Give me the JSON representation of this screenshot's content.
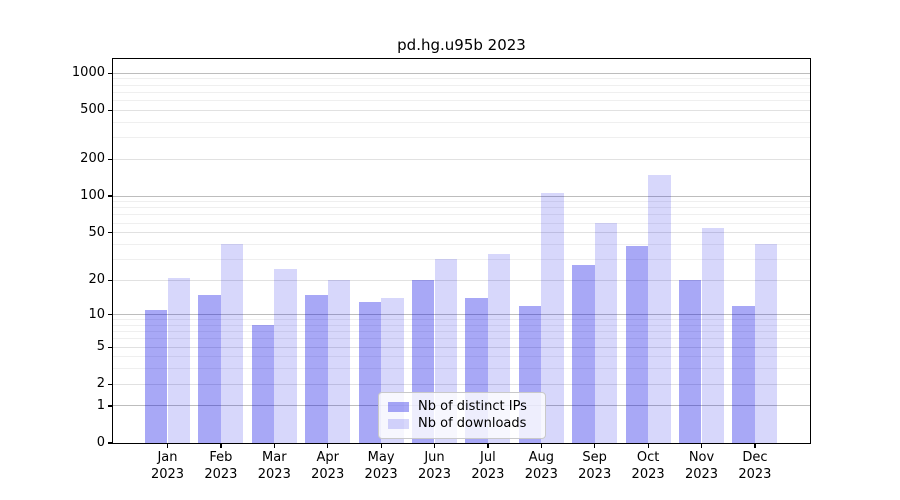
{
  "title": "pd.hg.u95b 2023",
  "chart_data": {
    "type": "bar",
    "title": "pd.hg.u95b 2023",
    "y_scale": "log10(value+1)",
    "grid": true,
    "legend_position": "inside-bottom-center",
    "categories": [
      "Jan",
      "Feb",
      "Mar",
      "Apr",
      "May",
      "Jun",
      "Jul",
      "Aug",
      "Sep",
      "Oct",
      "Nov",
      "Dec"
    ],
    "category_year": "2023",
    "series": [
      {
        "name": "Nb of distinct IPs",
        "color": "#0000e6",
        "opacity": 0.34,
        "values": [
          11,
          15,
          8,
          15,
          13,
          20,
          14,
          12,
          27,
          39,
          20,
          12
        ]
      },
      {
        "name": "Nb of downloads",
        "color": "#0000e6",
        "opacity": 0.155,
        "values": [
          21,
          40,
          25,
          20,
          14,
          30,
          33,
          105,
          60,
          150,
          55,
          40
        ]
      }
    ],
    "y_ticks": [
      0,
      1,
      2,
      5,
      10,
      20,
      50,
      100,
      200,
      500,
      1000
    ],
    "y_minor_ticks": [
      3,
      4,
      6,
      7,
      8,
      9,
      30,
      40,
      60,
      70,
      80,
      90,
      300,
      400,
      600,
      700,
      800,
      900
    ],
    "ylim": [
      0,
      1320
    ],
    "xlabel": "",
    "ylabel": ""
  },
  "colors": {
    "grid_major_decade": "#bdbdbd",
    "grid_major_other": "#e1e1e1",
    "grid_minor": "#efefef",
    "axis": "#000000",
    "legend_border": "#c9c9c9",
    "background": "#ffffff"
  }
}
